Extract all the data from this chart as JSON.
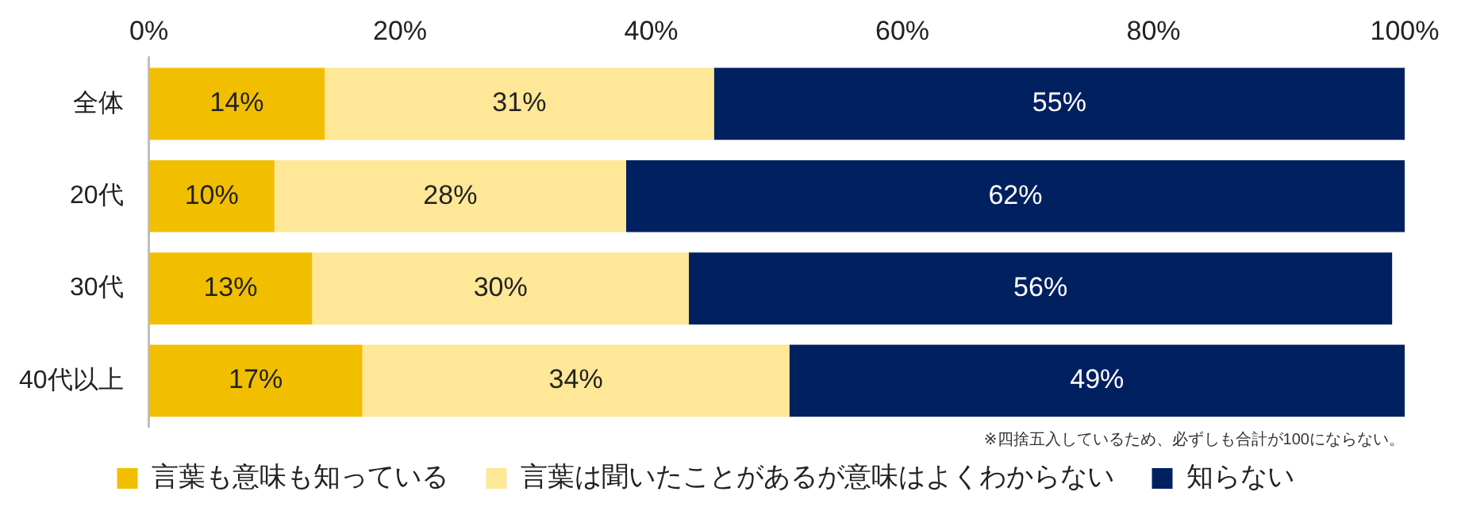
{
  "chart_data": {
    "type": "bar",
    "orientation": "horizontal",
    "stacked": true,
    "categories": [
      "全体",
      "20代",
      "30代",
      "40代以上"
    ],
    "series": [
      {
        "name": "言葉も意味も知っている",
        "color": "#f2bf00",
        "values": [
          14,
          10,
          13,
          17
        ],
        "value_labels": [
          "14%",
          "10%",
          "13%",
          "17%"
        ]
      },
      {
        "name": "言葉は聞いたことがあるが意味はよくわからない",
        "color": "#fee797",
        "values": [
          31,
          28,
          30,
          34
        ],
        "value_labels": [
          "31%",
          "28%",
          "30%",
          "34%"
        ]
      },
      {
        "name": "知らない",
        "color": "#002060",
        "values": [
          55,
          62,
          56,
          49
        ],
        "value_labels": [
          "55%",
          "62%",
          "56%",
          "49%"
        ]
      }
    ],
    "xlim": [
      0,
      100
    ],
    "xticks": [
      {
        "value": 0,
        "label": "0%"
      },
      {
        "value": 20,
        "label": "20%"
      },
      {
        "value": 40,
        "label": "40%"
      },
      {
        "value": 60,
        "label": "60%"
      },
      {
        "value": 80,
        "label": "80%"
      },
      {
        "value": 100,
        "label": "100%"
      }
    ],
    "grid": false,
    "legend": "bottom",
    "annotations": [
      "※四捨五入しているため、必ずしも合計が100にならない。"
    ]
  }
}
